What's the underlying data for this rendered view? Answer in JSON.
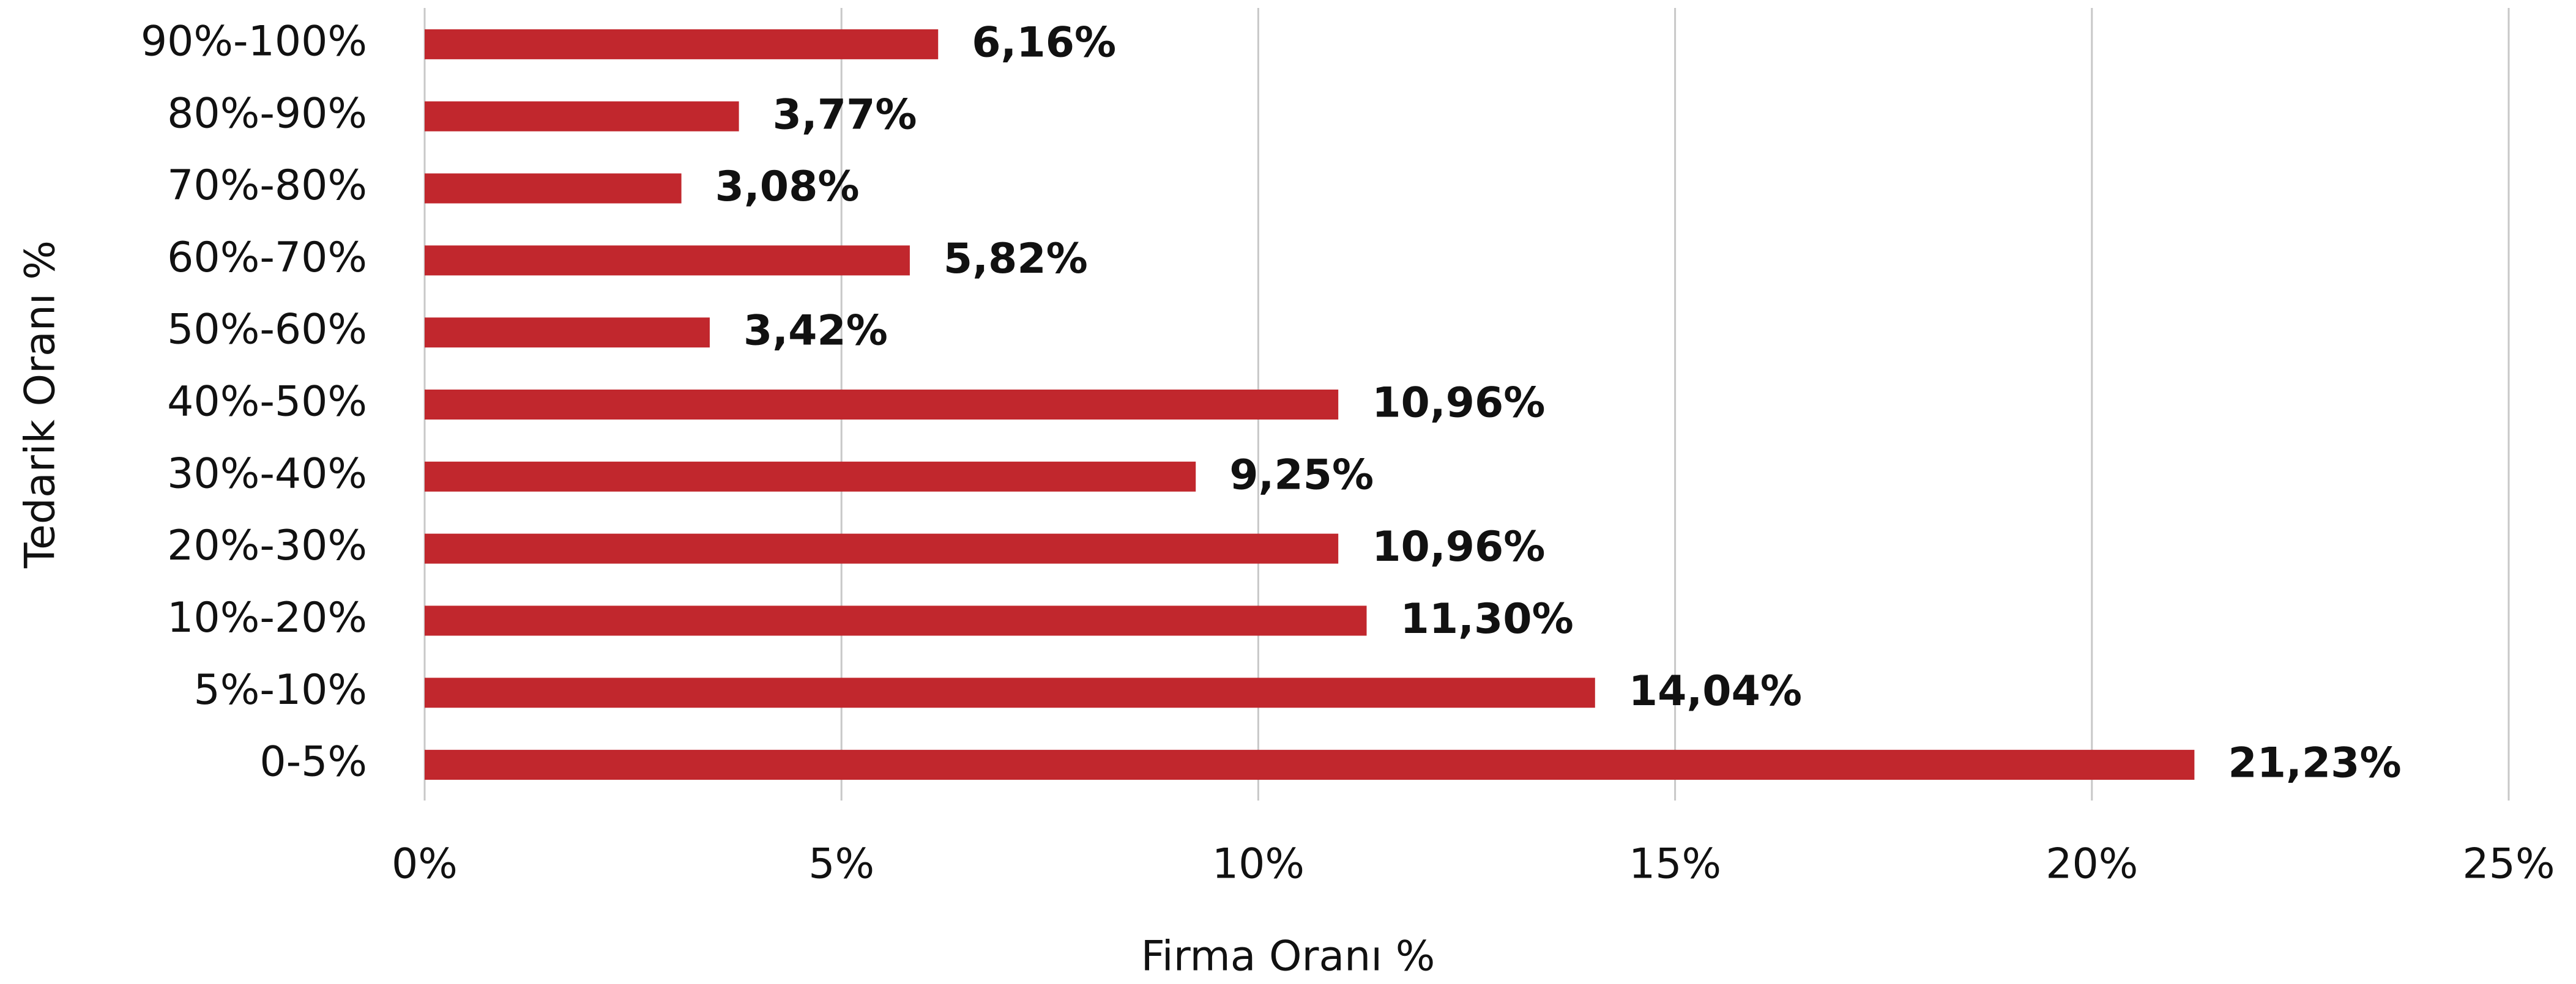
{
  "chart_data": {
    "type": "bar",
    "orientation": "horizontal",
    "xlabel": "Firma Oranı %",
    "ylabel": "Tedarik Oranı %",
    "categories": [
      "0-5%",
      "5%-10%",
      "10%-20%",
      "20%-30%",
      "30%-40%",
      "40%-50%",
      "50%-60%",
      "60%-70%",
      "70%-80%",
      "80%-90%",
      "90%-100%"
    ],
    "values": [
      21.23,
      14.04,
      11.3,
      10.96,
      9.25,
      10.96,
      3.42,
      5.82,
      3.08,
      3.77,
      6.16
    ],
    "value_labels": [
      "21,23%",
      "14,04%",
      "11,30%",
      "10,96%",
      "9,25%",
      "10,96%",
      "3,42%",
      "5,82%",
      "3,08%",
      "3,77%",
      "6,16%"
    ],
    "color": "#c1272d",
    "xlim": [
      0,
      25
    ],
    "xticks": [
      {
        "value": 0,
        "label": "0%"
      },
      {
        "value": 5,
        "label": "5%"
      },
      {
        "value": 10,
        "label": "10%"
      },
      {
        "value": 15,
        "label": "15%"
      },
      {
        "value": 20,
        "label": "20%"
      },
      {
        "value": 25,
        "label": "25%"
      }
    ],
    "grid": true
  }
}
